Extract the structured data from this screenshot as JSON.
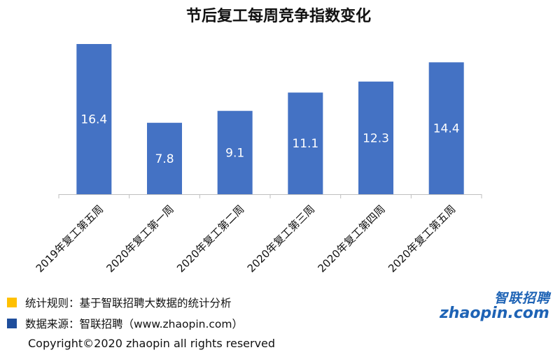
{
  "chart_data": {
    "type": "bar",
    "title": "节后复工每周竞争指数变化",
    "categories": [
      "2019年复工第五周",
      "2020年复工第一周",
      "2020年复工第二周",
      "2020年复工第三周",
      "2020年复工第四周",
      "2020年复工第五周"
    ],
    "values": [
      16.4,
      7.8,
      9.1,
      11.1,
      12.3,
      14.4
    ],
    "value_labels": [
      "16.4",
      "7.8",
      "9.1",
      "11.1",
      "12.3",
      "14.4"
    ],
    "ylim": [
      0,
      16.4
    ],
    "bar_color": "#4472c4",
    "grid": false,
    "legend": "none"
  },
  "footer": {
    "rule": {
      "text": "统计规则：基于智联招聘大数据的统计分析",
      "color": "#ffc000"
    },
    "source": {
      "text": "数据来源：智联招聘（www.zhaopin.com）",
      "color": "#1f4e9c"
    },
    "copyright": "Copyright©2020 zhaopin all rights reserved"
  },
  "logo": {
    "text_cn": "智联招聘",
    "text_en": "zhaopin.com",
    "color": "#1e63b5",
    "dot_color": "#f39800"
  }
}
